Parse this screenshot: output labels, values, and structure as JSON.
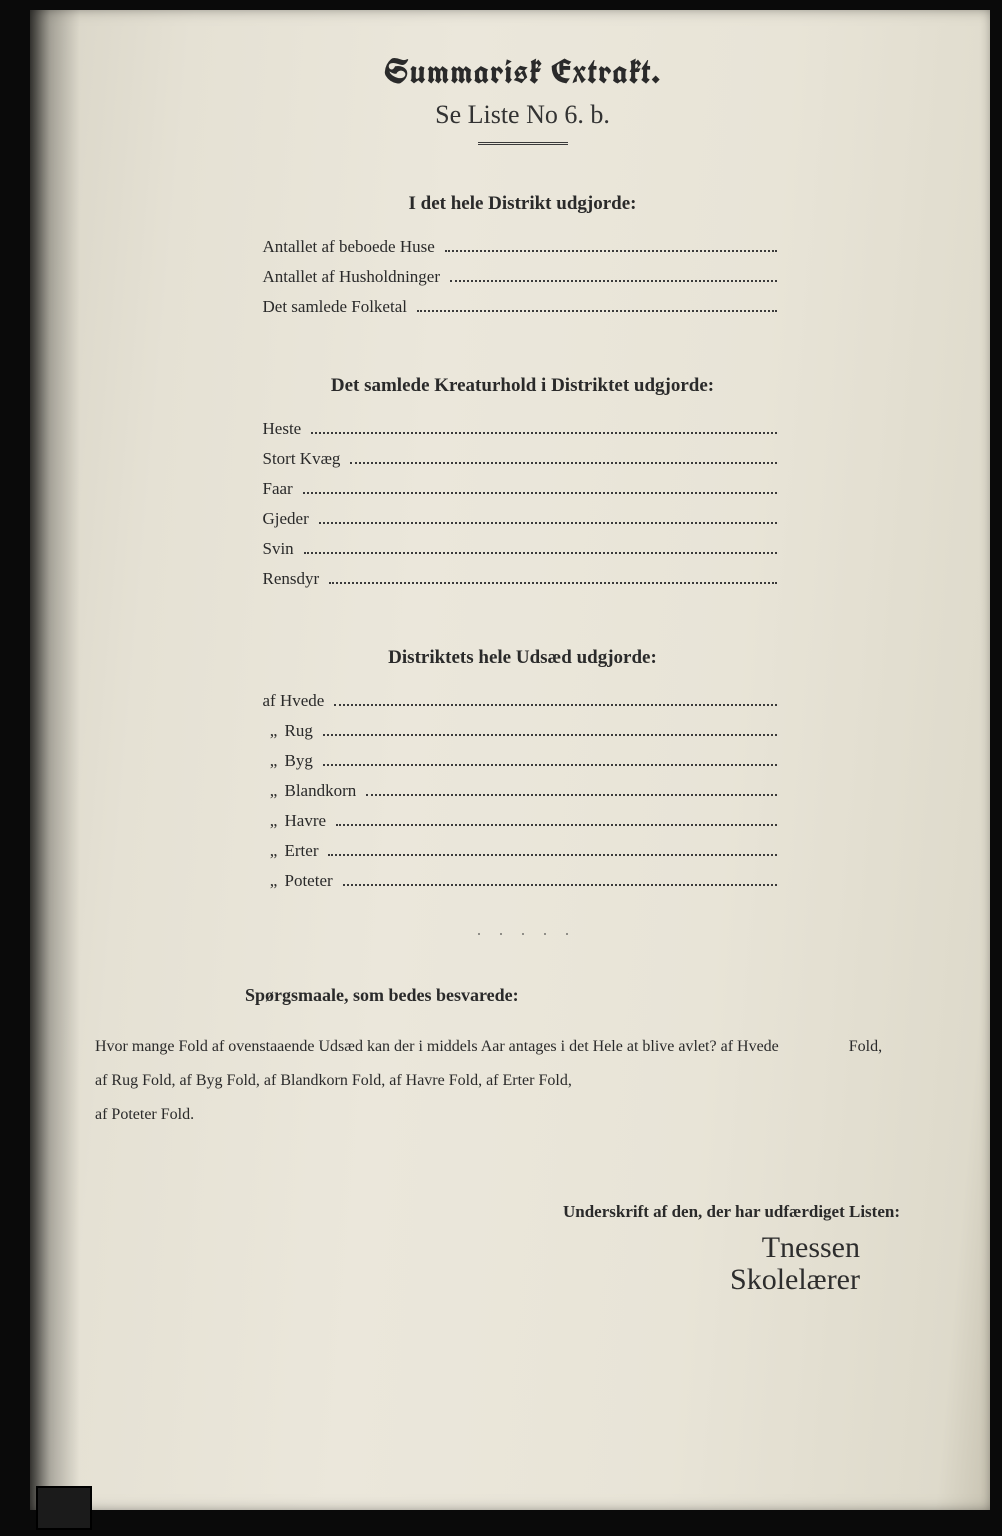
{
  "colors": {
    "paper_light": "#ebe7db",
    "paper_dark": "#d8d4c6",
    "ink": "#2a2a2a",
    "frame": "#0a0a0a"
  },
  "title": "Summarisk Extrakt.",
  "subtitle": "Se Liste No 6.  b.",
  "section1": {
    "heading": "I det hele Distrikt udgjorde:",
    "rows": [
      "Antallet af beboede Huse",
      "Antallet af Husholdninger",
      "Det samlede Folketal"
    ]
  },
  "section2": {
    "heading": "Det samlede Kreaturhold i Distriktet udgjorde:",
    "rows": [
      "Heste",
      "Stort Kvæg",
      "Faar",
      "Gjeder",
      "Svin",
      "Rensdyr"
    ]
  },
  "section3": {
    "heading": "Distriktets hele Udsæd udgjorde:",
    "lead": "af",
    "rows": [
      "Hvede",
      "Rug",
      "Byg",
      "Blandkorn",
      "Havre",
      "Erter",
      "Poteter"
    ]
  },
  "questions": {
    "heading": "Spørgsmaale, som bedes besvarede:",
    "line1_a": "Hvor mange Fold af ovenstaaende Udsæd kan der i middels Aar antages i det Hele at blive avlet?  af Hvede",
    "line1_b": "Fold,",
    "line2": "af Rug            Fold,  af Byg            Fold,  af Blandkorn            Fold,  af Havre            Fold,  af Erter            Fold,",
    "line3": "af Poteter            Fold."
  },
  "signature": {
    "heading": "Underskrift af den, der har udfærdiget Listen:",
    "name": "Tnessen",
    "role": "Skolelærer"
  }
}
